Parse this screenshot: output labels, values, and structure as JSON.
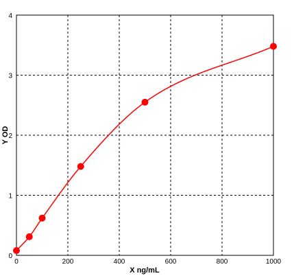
{
  "chart_data": {
    "type": "scatter",
    "title": "",
    "xlabel": "X ng/mL",
    "ylabel": "Y OD",
    "xlim": [
      0,
      1000
    ],
    "ylim": [
      0,
      4
    ],
    "x_ticks": [
      "0",
      "200",
      "400",
      "600",
      "800",
      "1000"
    ],
    "y_ticks": [
      "0",
      "1",
      "2",
      "3",
      "4"
    ],
    "grid": true,
    "grid_style": "dashed",
    "series": [
      {
        "x": [
          0,
          50,
          100,
          250,
          500,
          1000
        ],
        "y": [
          0.08,
          0.31,
          0.62,
          1.48,
          2.55,
          3.48
        ],
        "fit_curve": true,
        "color": "#ff0000"
      }
    ]
  }
}
